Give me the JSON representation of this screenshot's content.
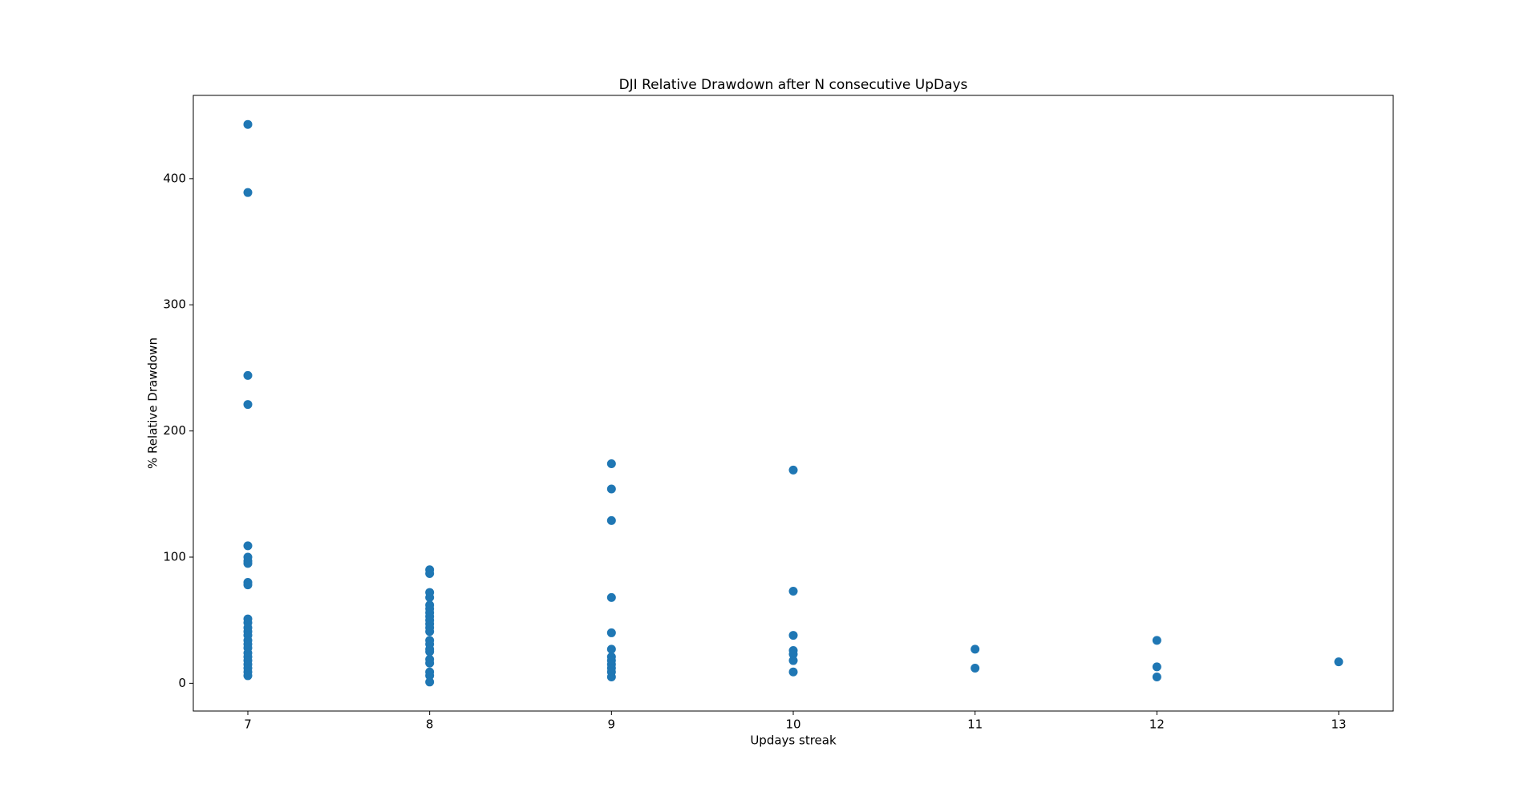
{
  "chart_data": {
    "type": "scatter",
    "title": "DJI Relative Drawdown after N consecutive UpDays",
    "xlabel": "Updays streak",
    "ylabel": "% Relative Drawdown",
    "color": "#1f77b4",
    "x": [
      7,
      7,
      7,
      7,
      7,
      7,
      7,
      7,
      7,
      7,
      7,
      7,
      7,
      7,
      7,
      7,
      7,
      7,
      7,
      7,
      7,
      7,
      7,
      7,
      7,
      8,
      8,
      8,
      8,
      8,
      8,
      8,
      8,
      8,
      8,
      8,
      8,
      8,
      8,
      8,
      8,
      8,
      8,
      8,
      8,
      8,
      9,
      9,
      9,
      9,
      9,
      9,
      9,
      9,
      9,
      9,
      9,
      9,
      10,
      10,
      10,
      10,
      10,
      10,
      10,
      11,
      11,
      12,
      12,
      12,
      13
    ],
    "y": [
      443,
      389,
      244,
      221,
      109,
      100,
      97,
      95,
      80,
      78,
      51,
      48,
      44,
      41,
      38,
      34,
      31,
      28,
      24,
      21,
      18,
      15,
      12,
      9,
      6,
      90,
      87,
      72,
      68,
      62,
      59,
      56,
      53,
      50,
      47,
      44,
      41,
      34,
      31,
      27,
      25,
      19,
      16,
      9,
      6,
      1,
      174,
      154,
      129,
      68,
      40,
      27,
      21,
      18,
      15,
      12,
      9,
      5,
      169,
      73,
      38,
      26,
      23,
      18,
      9,
      27,
      12,
      34,
      13,
      5,
      17
    ],
    "xlim": [
      6.7,
      13.3
    ],
    "ylim": [
      -22,
      466
    ],
    "xticks": [
      7,
      8,
      9,
      10,
      11,
      12,
      13
    ],
    "yticks": [
      0,
      100,
      200,
      300,
      400
    ],
    "grid": false
  }
}
